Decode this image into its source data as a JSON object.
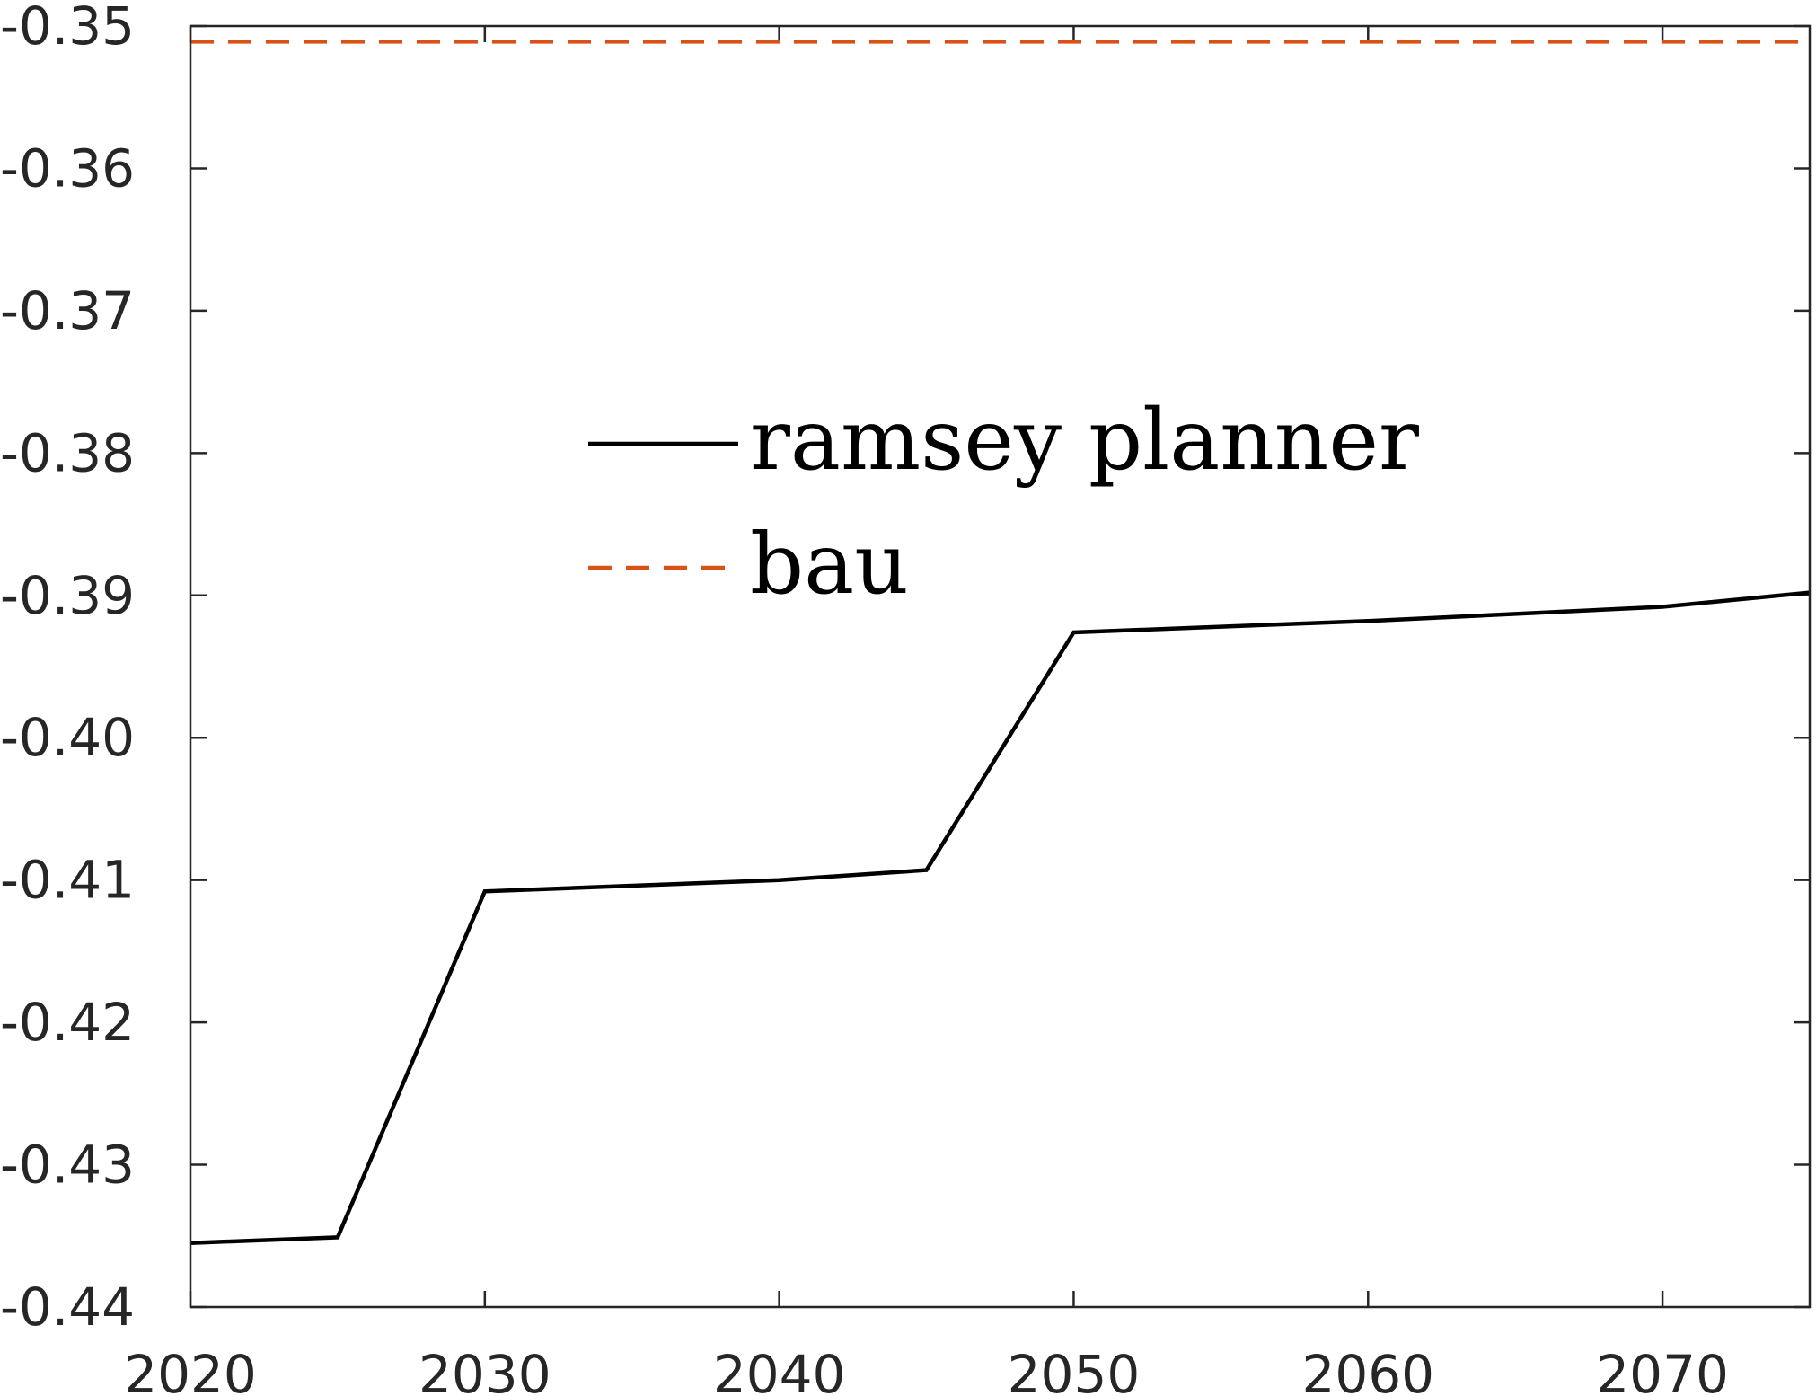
{
  "chart_data": {
    "type": "line",
    "title": "",
    "xlabel": "",
    "ylabel": "",
    "xlim": [
      2020,
      2075
    ],
    "ylim": [
      -0.44,
      -0.35
    ],
    "x_ticks": [
      2020,
      2030,
      2040,
      2050,
      2060,
      2070
    ],
    "x_tick_labels": [
      "2020",
      "2030",
      "2040",
      "2050",
      "2060",
      "2070"
    ],
    "y_ticks": [
      -0.35,
      -0.36,
      -0.37,
      -0.38,
      -0.39,
      -0.4,
      -0.41,
      -0.42,
      -0.43,
      -0.44
    ],
    "y_tick_labels": [
      "-0.35",
      "-0.36",
      "-0.37",
      "-0.38",
      "-0.39",
      "-0.40",
      "-0.41",
      "-0.42",
      "-0.43",
      "-0.44"
    ],
    "grid": false,
    "legend_position": "center-left",
    "series": [
      {
        "name": "ramsey planner",
        "color": "#000000",
        "style": "solid",
        "x": [
          2020,
          2025,
          2030,
          2035,
          2040,
          2045,
          2050,
          2055,
          2060,
          2065,
          2070,
          2075
        ],
        "y": [
          -0.4355,
          -0.4351,
          -0.4108,
          -0.4104,
          -0.41,
          -0.4093,
          -0.3926,
          -0.3922,
          -0.3918,
          -0.3913,
          -0.3908,
          -0.3898
        ]
      },
      {
        "name": "bau",
        "color": "#D95319",
        "style": "dashed",
        "x": [
          2020,
          2075
        ],
        "y": [
          -0.3511,
          -0.3511
        ]
      }
    ]
  }
}
